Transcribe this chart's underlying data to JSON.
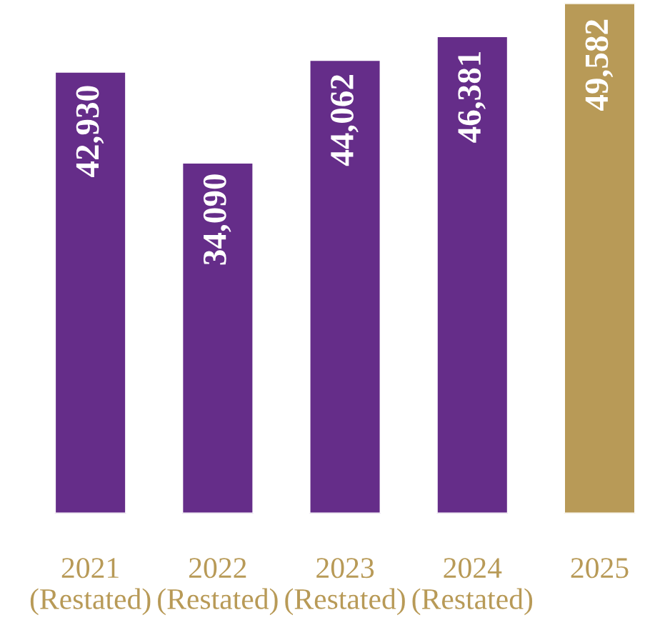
{
  "chart_data": {
    "type": "bar",
    "categories": [
      "2021\n(Restated)",
      "2022\n(Restated)",
      "2023\n(Restated)",
      "2024\n(Restated)",
      "2025"
    ],
    "values": [
      42930,
      34090,
      44062,
      46381,
      49582
    ],
    "colors": [
      "#652d89",
      "#652d89",
      "#652d89",
      "#652d89",
      "#b89a57"
    ],
    "value_labels": [
      "42,930",
      "34,090",
      "44,062",
      "46,381",
      "49,582"
    ],
    "grid": false,
    "legend": false
  }
}
